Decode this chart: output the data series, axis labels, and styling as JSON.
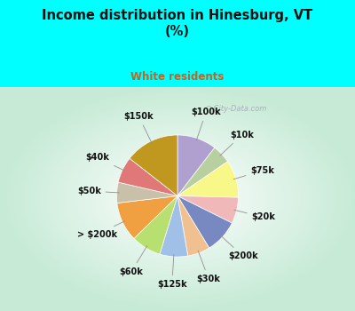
{
  "title": "Income distribution in Hinesburg, VT\n(%)",
  "subtitle": "White residents",
  "title_color": "#111111",
  "subtitle_color": "#b86828",
  "bg_cyan": "#00ffff",
  "bg_chart_color": "#c8e8d8",
  "watermark": "City-Data.com",
  "slices": [
    {
      "label": "$100k",
      "value": 10.5,
      "color": "#b0a0d0"
    },
    {
      "label": "$10k",
      "value": 5.0,
      "color": "#b8d0a0"
    },
    {
      "label": "$75k",
      "value": 10.0,
      "color": "#f8f888"
    },
    {
      "label": "$20k",
      "value": 7.0,
      "color": "#f0b8b8"
    },
    {
      "label": "$200k",
      "value": 9.0,
      "color": "#7888c0"
    },
    {
      "label": "$30k",
      "value": 6.0,
      "color": "#f0c090"
    },
    {
      "label": "$125k",
      "value": 7.5,
      "color": "#a0c0e8"
    },
    {
      "label": "$60k",
      "value": 8.0,
      "color": "#b8e070"
    },
    {
      "label": "> $200k",
      "value": 10.5,
      "color": "#f0a040"
    },
    {
      "label": "$50k",
      "value": 5.5,
      "color": "#c8c0a8"
    },
    {
      "label": "$40k",
      "value": 7.0,
      "color": "#e07878"
    },
    {
      "label": "$150k",
      "value": 14.5,
      "color": "#c09820"
    }
  ],
  "label_fontsize": 7.0,
  "label_color": "#111111",
  "figsize": [
    4.0,
    3.5
  ],
  "dpi": 100
}
